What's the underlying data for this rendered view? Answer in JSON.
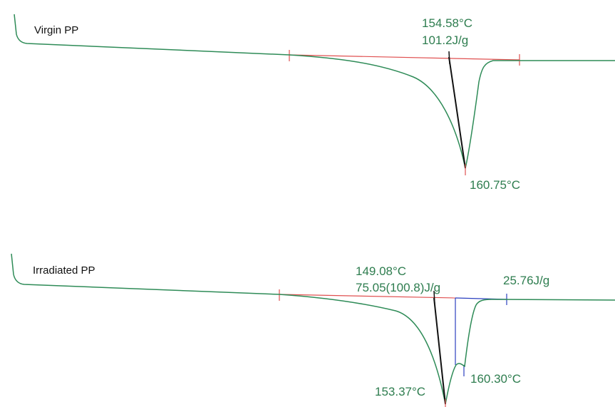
{
  "chart_data": [
    {
      "type": "line",
      "series": [
        {
          "name": "Virgin PP"
        }
      ],
      "annotations": {
        "onset_temperature": "154.58°C",
        "enthalpy": "101.2J/g",
        "peak_temperature": "160.75°C"
      }
    },
    {
      "type": "line",
      "series": [
        {
          "name": "Irradiated PP"
        }
      ],
      "annotations": {
        "onset_temperature": "149.08°C",
        "enthalpy": "75.05(100.8)J/g",
        "shoulder_enthalpy": "25.76J/g",
        "peak_temperature": "153.37°C",
        "shoulder_peak_temperature": "160.30°C"
      }
    }
  ],
  "colors": {
    "curve": "#2e8b57",
    "baseline": "#e05050",
    "tangent": "#111111",
    "partial_integration": "#2a3fbf",
    "annotation_text": "#2e7d4f"
  }
}
